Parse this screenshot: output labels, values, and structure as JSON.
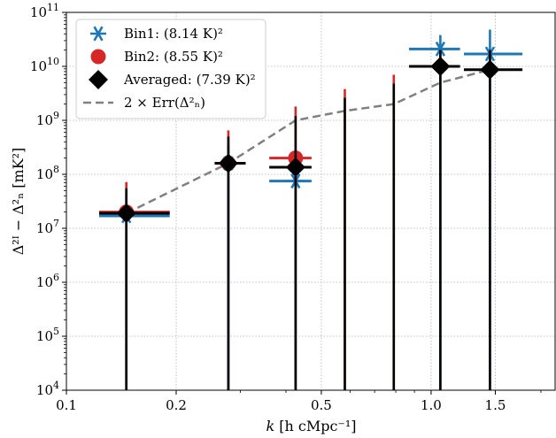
{
  "chart_data": {
    "type": "scatter",
    "xlabel_main": "k",
    "xlabel_unit": "[h cMpc⁻¹]",
    "ylabel": "Δ²ᴵ − Δ²ₙ [mK²]",
    "xscale": "log",
    "yscale": "log",
    "xlim": [
      0.1,
      2.2
    ],
    "ylim": [
      10000,
      100000000000
    ],
    "grid": true,
    "legend_position": "top-left",
    "x_tick_labels": [
      {
        "value": 0.1,
        "label": "0.1"
      },
      {
        "value": 0.2,
        "label": "0.2"
      },
      {
        "value": 0.5,
        "label": "0.5"
      },
      {
        "value": 1.0,
        "label": "1.0"
      },
      {
        "value": 1.5,
        "label": "1.5"
      }
    ],
    "y_tick_labels": [
      {
        "value": 10000,
        "base": "10",
        "exp": "4"
      },
      {
        "value": 100000,
        "base": "10",
        "exp": "5"
      },
      {
        "value": 1000000,
        "base": "10",
        "exp": "6"
      },
      {
        "value": 10000000,
        "base": "10",
        "exp": "7"
      },
      {
        "value": 100000000,
        "base": "10",
        "exp": "8"
      },
      {
        "value": 1000000000,
        "base": "10",
        "exp": "9"
      },
      {
        "value": 10000000000,
        "base": "10",
        "exp": "10"
      },
      {
        "value": 100000000000,
        "base": "10",
        "exp": "11"
      }
    ],
    "series": [
      {
        "name": "Bin1: (8.14 K)²",
        "marker": "asterisk",
        "color": "#1f77b4",
        "points": [
          {
            "x": 0.146,
            "y": 17000000,
            "xlo": 0.123,
            "xhi": 0.192,
            "yhi": 40000000
          },
          {
            "x": 0.278,
            "y": 160000000,
            "xlo": 0.255,
            "xhi": 0.31,
            "yhi": 350000000
          },
          {
            "x": 0.425,
            "y": 75000000,
            "xlo": 0.36,
            "xhi": 0.47,
            "yhi": 170000000
          },
          {
            "x": 1.06,
            "y": 21000000000,
            "xlo": 0.87,
            "xhi": 1.2,
            "yhi": 38000000000
          },
          {
            "x": 1.45,
            "y": 17000000000,
            "xlo": 1.23,
            "xhi": 1.78,
            "yhi": 48000000000
          }
        ]
      },
      {
        "name": "Bin2: (8.55 K)²",
        "marker": "circle",
        "color": "#d62728",
        "points": [
          {
            "x": 0.146,
            "y": 20000000,
            "xlo": 0.123,
            "xhi": 0.192,
            "yhi": 72000000
          },
          {
            "x": 0.278,
            "y": 160000000,
            "xlo": 0.255,
            "xhi": 0.31,
            "yhi": 650000000
          },
          {
            "x": 0.425,
            "y": 200000000,
            "xlo": 0.36,
            "xhi": 0.47,
            "yhi": 1800000000
          },
          {
            "x": 0.58,
            "y": null,
            "xlo": null,
            "xhi": null,
            "yhi": 3800000000
          },
          {
            "x": 0.79,
            "y": null,
            "xlo": null,
            "xhi": null,
            "yhi": 7000000000
          }
        ]
      },
      {
        "name": "Averaged: (7.39 K)²",
        "marker": "diamond",
        "color": "#000000",
        "points": [
          {
            "x": 0.146,
            "y": 19000000,
            "xlo": 0.123,
            "xhi": 0.192,
            "yhi": 55000000
          },
          {
            "x": 0.278,
            "y": 160000000,
            "xlo": 0.255,
            "xhi": 0.31,
            "yhi": 500000000
          },
          {
            "x": 0.425,
            "y": 135000000,
            "xlo": 0.36,
            "xhi": 0.47,
            "yhi": 1200000000
          },
          {
            "x": 0.58,
            "y": null,
            "xlo": null,
            "xhi": null,
            "yhi": 2600000000
          },
          {
            "x": 0.79,
            "y": null,
            "xlo": null,
            "xhi": null,
            "yhi": 4800000000
          },
          {
            "x": 1.06,
            "y": 10000000000,
            "xlo": 0.87,
            "xhi": 1.2,
            "yhi": 20000000000
          },
          {
            "x": 1.45,
            "y": 8700000000,
            "xlo": 1.23,
            "xhi": 1.78,
            "yhi": 20000000000
          }
        ]
      }
    ],
    "err_line": {
      "name": "2 × Err(Δ²ₙ)",
      "color": "#808080",
      "points": [
        {
          "x": 0.146,
          "y": 19000000
        },
        {
          "x": 0.278,
          "y": 160000000
        },
        {
          "x": 0.425,
          "y": 1000000000
        },
        {
          "x": 0.58,
          "y": 1500000000
        },
        {
          "x": 0.79,
          "y": 2000000000
        },
        {
          "x": 1.06,
          "y": 5000000000
        },
        {
          "x": 1.45,
          "y": 8700000000
        }
      ]
    }
  }
}
